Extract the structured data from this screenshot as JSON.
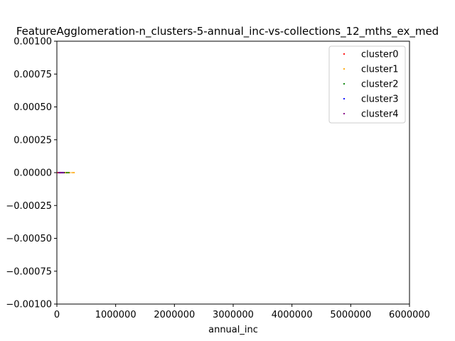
{
  "chart_data": {
    "type": "scatter",
    "title": "FeatureAgglomeration-n_clusters-5-annual_inc-vs-collections_12_mths_ex_med",
    "xlabel": "annual_inc",
    "ylabel": "",
    "xlim": [
      0,
      6000000
    ],
    "ylim": [
      -0.001,
      0.001
    ],
    "x_ticks": [
      0,
      1000000,
      2000000,
      3000000,
      4000000,
      5000000,
      6000000
    ],
    "x_tick_labels": [
      "0",
      "1000000",
      "2000000",
      "3000000",
      "4000000",
      "5000000",
      "6000000"
    ],
    "y_ticks": [
      -0.001,
      -0.00075,
      -0.0005,
      -0.00025,
      0,
      0.00025,
      0.0005,
      0.00075,
      0.001
    ],
    "y_tick_labels": [
      "−0.00100",
      "−0.00075",
      "−0.00050",
      "−0.00025",
      "0.00000",
      "0.00025",
      "0.00050",
      "0.00075",
      "0.00100"
    ],
    "grid": false,
    "legend_position": "top-right",
    "series": [
      {
        "name": "cluster0",
        "color": "#ff0000",
        "x": [
          20000,
          35000,
          50000,
          60000,
          75000,
          90000
        ],
        "y": [
          0,
          0,
          0,
          0,
          0,
          0
        ]
      },
      {
        "name": "cluster1",
        "color": "#ffa500",
        "x": [
          150000,
          180000,
          220000,
          260000,
          290000
        ],
        "y": [
          0,
          0,
          0,
          0,
          0
        ]
      },
      {
        "name": "cluster2",
        "color": "#008000",
        "x": [
          110000,
          130000,
          170000,
          200000
        ],
        "y": [
          0,
          0,
          0,
          0
        ]
      },
      {
        "name": "cluster3",
        "color": "#0000ff",
        "x": [
          40000,
          65000,
          85000,
          100000
        ],
        "y": [
          0,
          0,
          0,
          0
        ]
      },
      {
        "name": "cluster4",
        "color": "#800080",
        "x": [
          30000,
          55000,
          70000,
          95000,
          120000
        ],
        "y": [
          0,
          0,
          0,
          0,
          0
        ]
      }
    ]
  }
}
